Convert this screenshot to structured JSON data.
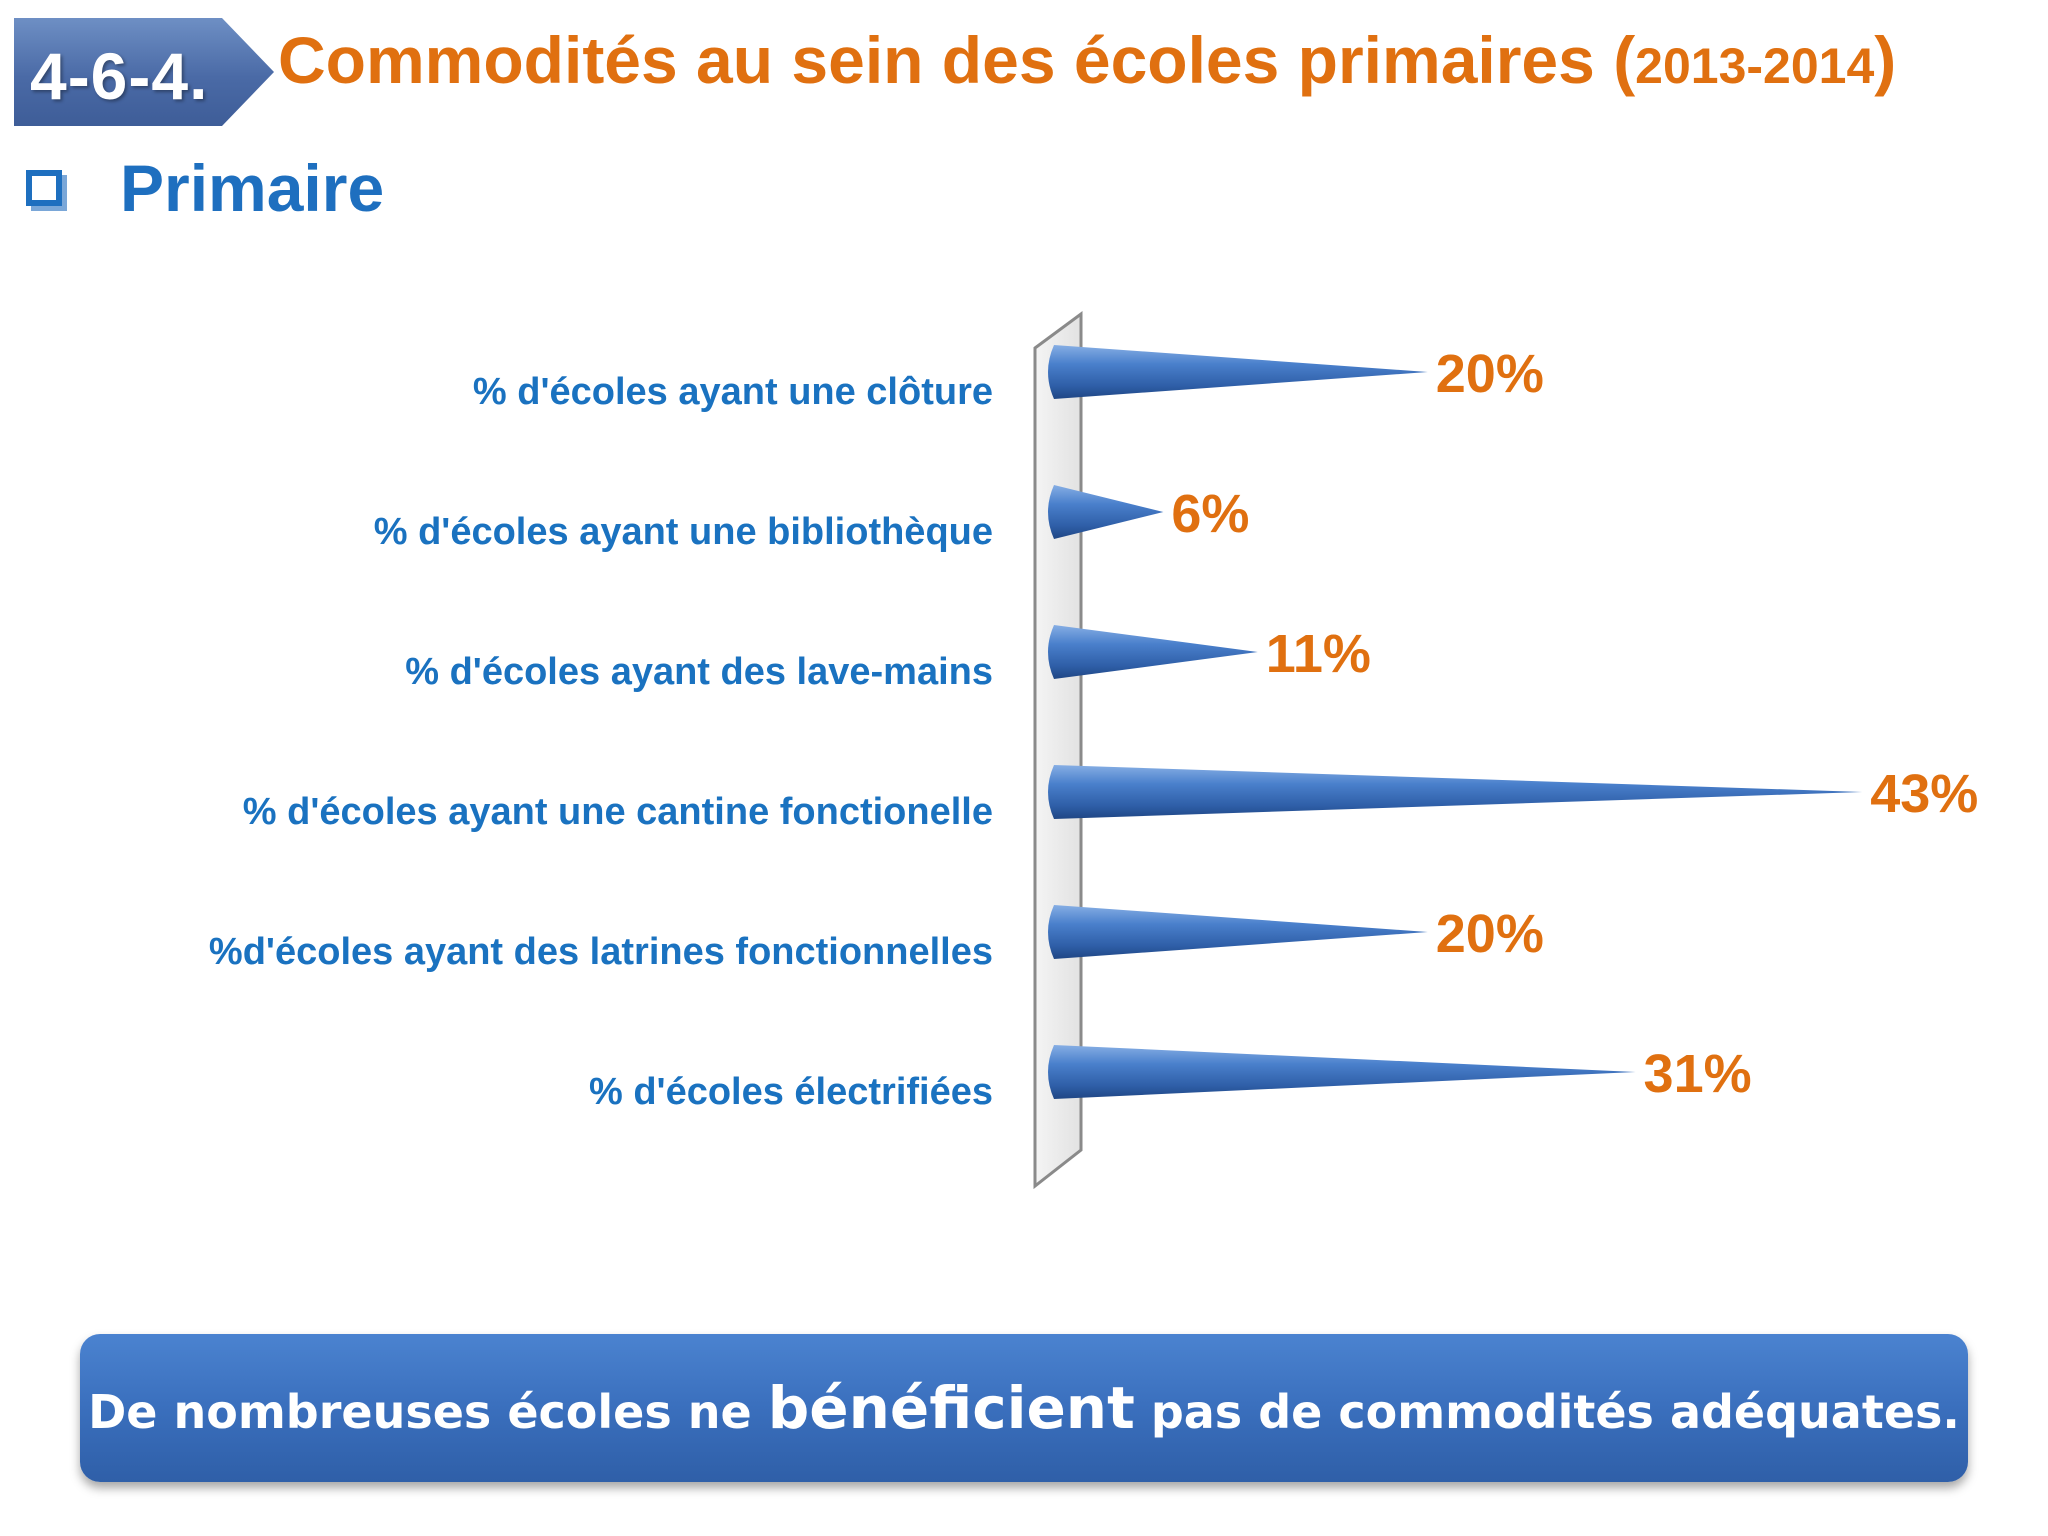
{
  "header": {
    "badge": "4-6-4.",
    "title_main": "Commodités  au sein des écoles primaires ",
    "title_open": "(",
    "title_years": "2013-2014",
    "title_close": ")"
  },
  "section": {
    "label": "Primaire"
  },
  "chart_data": {
    "type": "bar",
    "orientation": "horizontal",
    "categories": [
      "% d'écoles ayant une clôture",
      "% d'écoles ayant une bibliothèque",
      "% d'écoles ayant des lave-mains",
      "% d'écoles ayant une cantine fonctionelle",
      "%d'écoles ayant des latrines fonctionnelles",
      "% d'écoles électrifiées"
    ],
    "values": [
      20,
      6,
      11,
      43,
      20,
      31
    ],
    "value_labels": [
      "20%",
      "6%",
      "11%",
      "43%",
      "20%",
      "31%"
    ],
    "xlim": [
      0,
      45
    ],
    "grid": false,
    "legend": "none",
    "bar_color": "#3d74c2",
    "label_color": "#1a72c0",
    "value_color": "#e07010"
  },
  "banner": {
    "before": "De nombreuses écoles ne ",
    "emphasis": "bénéficient",
    "after": " pas de commodités adéquates."
  }
}
